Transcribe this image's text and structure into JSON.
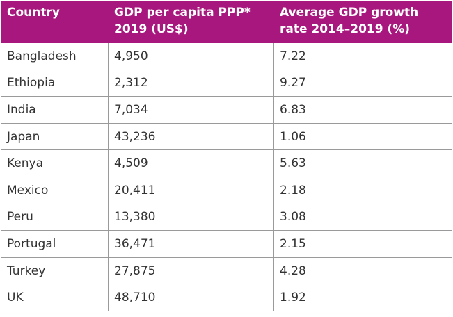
{
  "table": {
    "header": [
      "Country",
      "GDP per capita PPP*\n2019 (US$)",
      "Average GDP growth\nrate 2014–2019 (%)"
    ],
    "rows": [
      [
        "Bangladesh",
        "4,950",
        "7.22"
      ],
      [
        "Ethiopia",
        "2,312",
        "9.27"
      ],
      [
        "India",
        "7,034",
        "6.83"
      ],
      [
        "Japan",
        "43,236",
        "1.06"
      ],
      [
        "Kenya",
        "4,509",
        "5.63"
      ],
      [
        "Mexico",
        "20,411",
        "2.18"
      ],
      [
        "Peru",
        "13,380",
        "3.08"
      ],
      [
        "Portugal",
        "36,471",
        "2.15"
      ],
      [
        "Turkey",
        "27,875",
        "4.28"
      ],
      [
        "UK",
        "48,710",
        "1.92"
      ]
    ]
  }
}
